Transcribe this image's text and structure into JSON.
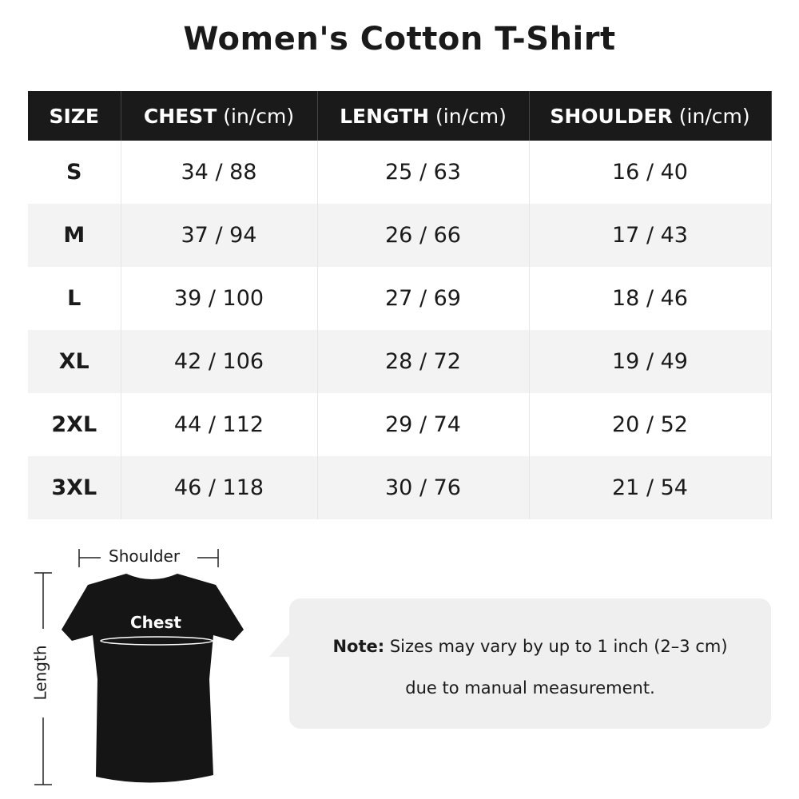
{
  "title": "Women's Cotton T-Shirt",
  "table": {
    "headers": [
      {
        "label": "SIZE",
        "unit": ""
      },
      {
        "label": "CHEST",
        "unit": " (in/cm)"
      },
      {
        "label": "LENGTH",
        "unit": " (in/cm)"
      },
      {
        "label": "SHOULDER",
        "unit": " (in/cm)"
      }
    ],
    "rows": [
      [
        "S",
        "34 / 88",
        "25 / 63",
        "16 / 40"
      ],
      [
        "M",
        "37 / 94",
        "26 / 66",
        "17 / 43"
      ],
      [
        "L",
        "39 / 100",
        "27 / 69",
        "18 / 46"
      ],
      [
        "XL",
        "42 / 106",
        "28 / 72",
        "19 / 49"
      ],
      [
        "2XL",
        "44 / 112",
        "29 / 74",
        "20 / 52"
      ],
      [
        "3XL",
        "46 / 118",
        "30 / 76",
        "21 / 54"
      ]
    ]
  },
  "diagram": {
    "shoulder": "Shoulder",
    "chest": "Chest",
    "length": "Length"
  },
  "note": {
    "label": "Note:",
    "line1": " Sizes may vary by up to 1 inch (2–3 cm)",
    "line2": "due to manual measurement."
  },
  "colors": {
    "header_bg": "#1a1a1a",
    "alt_row": "#f3f3f3",
    "note_bg": "#efefef"
  }
}
